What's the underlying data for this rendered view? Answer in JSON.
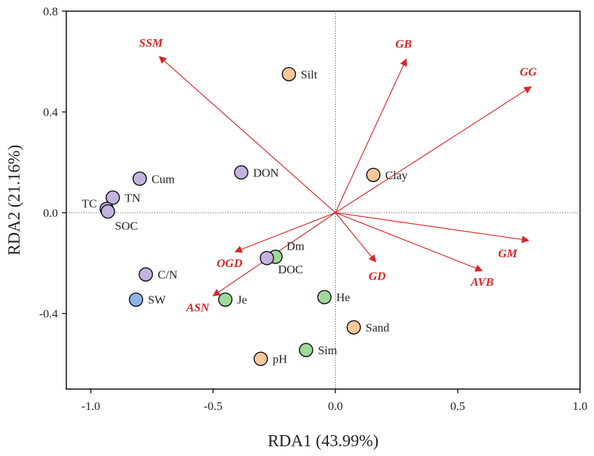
{
  "chart_data": {
    "type": "scatter",
    "title": "",
    "xlabel": "RDA1 (43.99%)",
    "ylabel": "RDA2 (21.16%)",
    "xlim": [
      -1.1,
      1.0
    ],
    "ylim": [
      -0.7,
      0.8
    ],
    "x_ticks": [
      -1.0,
      -0.5,
      0.0,
      0.5,
      1.0
    ],
    "x_tick_labels": [
      "-1.0",
      "-0.5",
      "0.0",
      "0.5",
      "1.0"
    ],
    "y_ticks": [
      -0.4,
      0.0,
      0.4,
      0.8
    ],
    "y_tick_labels": [
      "-0.4",
      "0.0",
      "0.4",
      "0.8"
    ],
    "colors": {
      "purple": "#c4b2e0",
      "orange": "#fbc89a",
      "green": "#9fd99a",
      "blue": "#8fb3ee",
      "arrow": "#d62728",
      "frame": "#111111"
    },
    "points": [
      {
        "label": "Silt",
        "x": -0.19,
        "y": 0.55,
        "group": "orange"
      },
      {
        "label": "Clay",
        "x": 0.155,
        "y": 0.15,
        "group": "orange"
      },
      {
        "label": "Sand",
        "x": 0.075,
        "y": -0.455,
        "group": "orange"
      },
      {
        "label": "pH",
        "x": -0.305,
        "y": -0.58,
        "group": "orange"
      },
      {
        "label": "Cum",
        "x": -0.8,
        "y": 0.135,
        "group": "purple"
      },
      {
        "label": "DON",
        "x": -0.385,
        "y": 0.16,
        "group": "purple"
      },
      {
        "label": "TN",
        "x": -0.91,
        "y": 0.06,
        "group": "purple"
      },
      {
        "label": "TC",
        "x": -0.935,
        "y": 0.015,
        "group": "purple"
      },
      {
        "label": "SOC",
        "x": -0.93,
        "y": 0.005,
        "group": "purple"
      },
      {
        "label": "C/N",
        "x": -0.775,
        "y": -0.245,
        "group": "purple"
      },
      {
        "label": "Dm",
        "x": -0.245,
        "y": -0.175,
        "group": "green"
      },
      {
        "label": "DOC",
        "x": -0.28,
        "y": -0.18,
        "group": "purple"
      },
      {
        "label": "He",
        "x": -0.045,
        "y": -0.335,
        "group": "green"
      },
      {
        "label": "Je",
        "x": -0.45,
        "y": -0.345,
        "group": "green"
      },
      {
        "label": "Sim",
        "x": -0.12,
        "y": -0.545,
        "group": "green"
      },
      {
        "label": "SW",
        "x": -0.815,
        "y": -0.345,
        "group": "blue"
      }
    ],
    "arrows": [
      {
        "label": "SSM",
        "x": -0.72,
        "y": 0.62
      },
      {
        "label": "GB",
        "x": 0.29,
        "y": 0.61
      },
      {
        "label": "GG",
        "x": 0.8,
        "y": 0.5
      },
      {
        "label": "GM",
        "x": 0.79,
        "y": -0.11
      },
      {
        "label": "AVB",
        "x": 0.6,
        "y": -0.23
      },
      {
        "label": "GD",
        "x": 0.165,
        "y": -0.195
      },
      {
        "label": "OGD",
        "x": -0.41,
        "y": -0.155
      },
      {
        "label": "ASN",
        "x": -0.5,
        "y": -0.33
      }
    ]
  }
}
